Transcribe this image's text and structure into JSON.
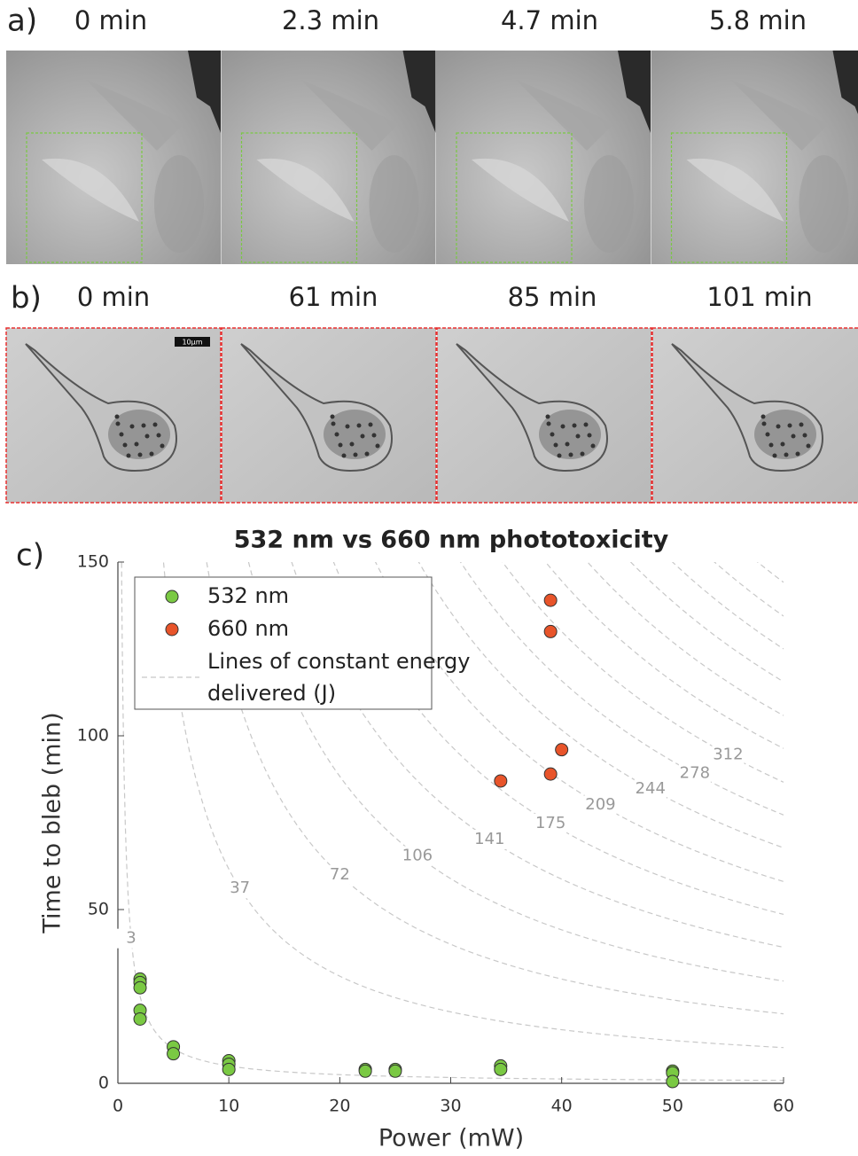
{
  "panels": {
    "a": {
      "label": "a)",
      "times": [
        "0 min",
        "2.3 min",
        "4.7 min",
        "5.8 min"
      ]
    },
    "b": {
      "label": "b)",
      "times": [
        "0 min",
        "61 min",
        "85 min",
        "101 min"
      ],
      "scale_bar": "10µm"
    }
  },
  "chart_data": {
    "type": "scatter",
    "panel_label": "c)",
    "title": "532 nm vs 660 nm phototoxicity",
    "x_label": "Power (mW)",
    "y_label": "Time to bleb (min)",
    "xlim": [
      0,
      60
    ],
    "xticks": [
      0,
      10,
      20,
      30,
      40,
      50,
      60
    ],
    "ylim": [
      0,
      150
    ],
    "yticks": [
      0,
      50,
      100,
      150
    ],
    "series": [
      {
        "name": "532 nm",
        "color": "#7ac943",
        "x": [
          2,
          2,
          2,
          2,
          2,
          5,
          5,
          10,
          10,
          10,
          22.3,
          22.3,
          25,
          25,
          34.5,
          34.5,
          50,
          50,
          50
        ],
        "values": [
          30,
          29,
          27.5,
          21,
          18.5,
          10.5,
          8.5,
          6.5,
          5.5,
          4,
          4,
          3.5,
          4,
          3.5,
          5,
          4,
          3.5,
          3,
          0.5
        ]
      },
      {
        "name": "660 nm",
        "color": "#e8542a",
        "x": [
          39,
          39,
          40,
          39,
          34.5
        ],
        "values": [
          139,
          130,
          96,
          89,
          87
        ]
      }
    ],
    "energy_legend": "Lines of constant energy delivered (J)",
    "energy_lines": [
      3,
      37,
      72,
      106,
      141,
      175,
      209,
      244,
      278,
      312,
      347,
      381,
      416,
      450,
      484,
      519
    ],
    "energy_line_labels": [
      3,
      37,
      72,
      106,
      141,
      175,
      209,
      244,
      278,
      312,
      null,
      null,
      null,
      null,
      null,
      null
    ],
    "energy_color": "#c8c8c8"
  }
}
